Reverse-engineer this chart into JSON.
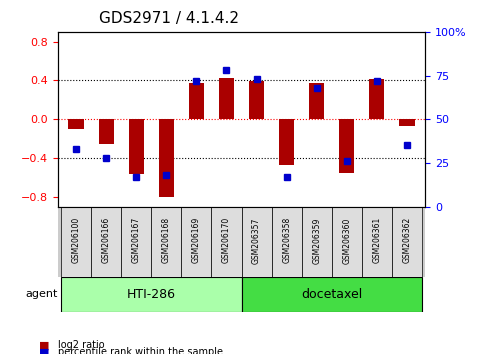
{
  "title": "GDS2971 / 4.1.4.2",
  "samples": [
    "GSM206100",
    "GSM206166",
    "GSM206167",
    "GSM206168",
    "GSM206169",
    "GSM206170",
    "GSM206357",
    "GSM206358",
    "GSM206359",
    "GSM206360",
    "GSM206361",
    "GSM206362"
  ],
  "log2_ratio": [
    -0.1,
    -0.25,
    -0.56,
    -0.8,
    0.37,
    0.42,
    0.39,
    -0.47,
    0.37,
    -0.55,
    0.41,
    -0.07
  ],
  "percentile_rank": [
    33,
    28,
    17,
    18,
    72,
    78,
    73,
    17,
    68,
    26,
    72,
    35
  ],
  "groups": [
    {
      "label": "HTI-286",
      "start": 0,
      "end": 5,
      "color": "#aaffaa"
    },
    {
      "label": "docetaxel",
      "start": 6,
      "end": 11,
      "color": "#44dd44"
    }
  ],
  "ylim": [
    -0.9,
    0.9
  ],
  "yticks_left": [
    -0.8,
    -0.4,
    0.0,
    0.4,
    0.8
  ],
  "yticks_right": [
    0,
    25,
    50,
    75,
    100
  ],
  "bar_color": "#aa0000",
  "dot_color": "#0000cc",
  "background_color": "#ffffff",
  "legend_red": "log2 ratio",
  "legend_blue": "percentile rank within the sample",
  "agent_label": "agent"
}
